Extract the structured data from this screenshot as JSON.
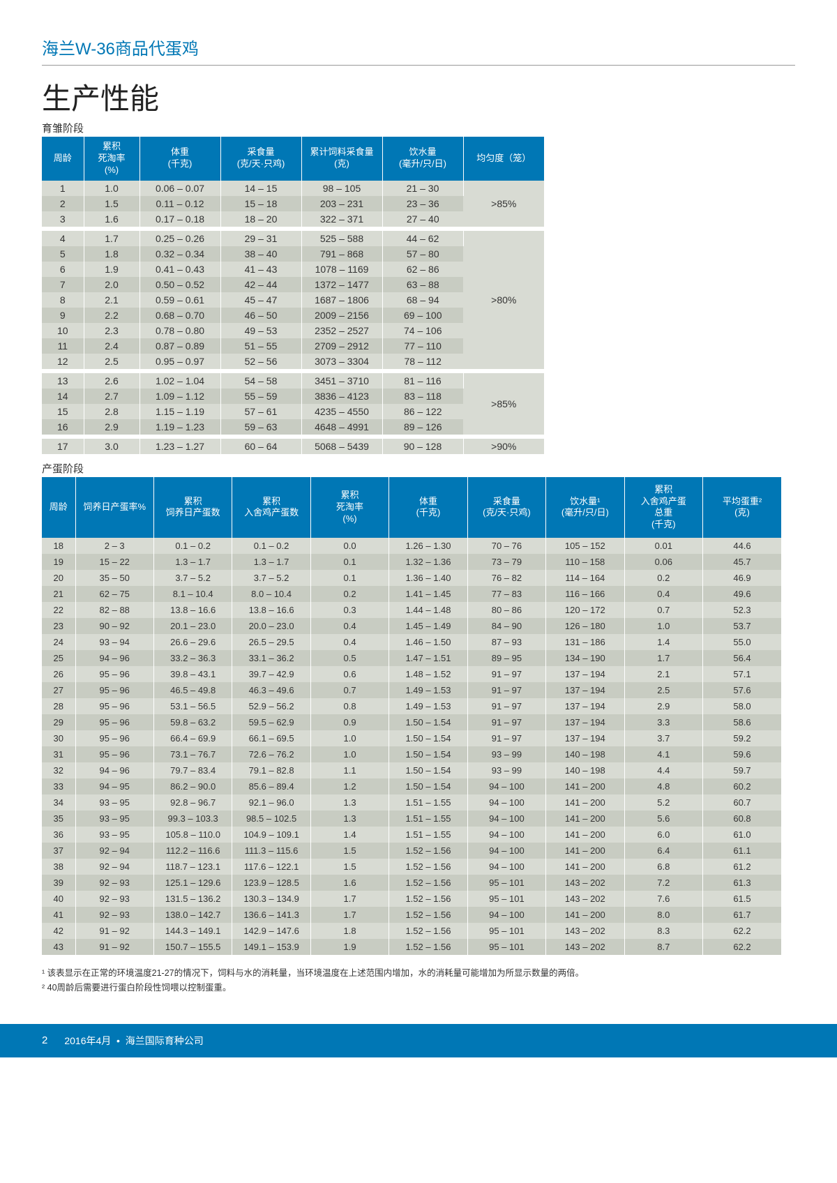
{
  "header": "海兰W-36商品代蛋鸡",
  "title": "生产性能",
  "section1_label": "育雏阶段",
  "section2_label": "产蛋阶段",
  "colors": {
    "brand": "#0077b5",
    "row_a": "#d8dbd3",
    "row_b": "#c8ccc2"
  },
  "t1_headers": [
    "周龄",
    "累积\n死淘率\n(%)",
    "体重\n(千克)",
    "采食量\n(克/天·只鸡)",
    "累计饲料采食量\n(克)",
    "饮水量\n(毫升/只/日)",
    "均匀度（笼）"
  ],
  "t1_groups": [
    {
      "uniformity": ">85%",
      "rows": [
        [
          "1",
          "1.0",
          "0.06 – 0.07",
          "14 – 15",
          "98 – 105",
          "21 – 30"
        ],
        [
          "2",
          "1.5",
          "0.11 – 0.12",
          "15 – 18",
          "203 – 231",
          "23 – 36"
        ],
        [
          "3",
          "1.6",
          "0.17 – 0.18",
          "18 – 20",
          "322 – 371",
          "27 – 40"
        ]
      ]
    },
    {
      "uniformity": ">80%",
      "rows": [
        [
          "4",
          "1.7",
          "0.25 – 0.26",
          "29 – 31",
          "525 – 588",
          "44 – 62"
        ],
        [
          "5",
          "1.8",
          "0.32 – 0.34",
          "38 – 40",
          "791 – 868",
          "57 – 80"
        ],
        [
          "6",
          "1.9",
          "0.41 – 0.43",
          "41 – 43",
          "1078 – 1169",
          "62 – 86"
        ],
        [
          "7",
          "2.0",
          "0.50 – 0.52",
          "42 – 44",
          "1372 – 1477",
          "63 – 88"
        ],
        [
          "8",
          "2.1",
          "0.59 – 0.61",
          "45 – 47",
          "1687 – 1806",
          "68 – 94"
        ],
        [
          "9",
          "2.2",
          "0.68 – 0.70",
          "46 – 50",
          "2009 – 2156",
          "69 – 100"
        ],
        [
          "10",
          "2.3",
          "0.78 – 0.80",
          "49 – 53",
          "2352 – 2527",
          "74 – 106"
        ],
        [
          "11",
          "2.4",
          "0.87 – 0.89",
          "51 – 55",
          "2709 – 2912",
          "77 – 110"
        ],
        [
          "12",
          "2.5",
          "0.95 – 0.97",
          "52 – 56",
          "3073 – 3304",
          "78 – 112"
        ]
      ]
    },
    {
      "uniformity": ">85%",
      "rows": [
        [
          "13",
          "2.6",
          "1.02 – 1.04",
          "54 – 58",
          "3451 – 3710",
          "81 – 116"
        ],
        [
          "14",
          "2.7",
          "1.09 – 1.12",
          "55 – 59",
          "3836 – 4123",
          "83 – 118"
        ],
        [
          "15",
          "2.8",
          "1.15 – 1.19",
          "57 – 61",
          "4235 – 4550",
          "86 – 122"
        ],
        [
          "16",
          "2.9",
          "1.19 – 1.23",
          "59 – 63",
          "4648 – 4991",
          "89 – 126"
        ]
      ]
    },
    {
      "uniformity": ">90%",
      "rows": [
        [
          "17",
          "3.0",
          "1.23 – 1.27",
          "60 – 64",
          "5068 – 5439",
          "90 – 128"
        ]
      ]
    }
  ],
  "t2_headers": [
    "周龄",
    "饲养日产蛋率%",
    "累积\n饲养日产蛋数",
    "累积\n入舍鸡产蛋数",
    "累积\n死淘率\n(%)",
    "体重\n(千克)",
    "采食量\n(克/天·只鸡)",
    "饮水量¹\n(毫升/只/日)",
    "累积\n入舍鸡产蛋\n总重\n(千克)",
    "平均蛋重²\n(克)"
  ],
  "t2_rows": [
    [
      "18",
      "2 – 3",
      "0.1 – 0.2",
      "0.1 – 0.2",
      "0.0",
      "1.26 – 1.30",
      "70 – 76",
      "105 – 152",
      "0.01",
      "44.6"
    ],
    [
      "19",
      "15 – 22",
      "1.3 – 1.7",
      "1.3 – 1.7",
      "0.1",
      "1.32 – 1.36",
      "73 – 79",
      "110 – 158",
      "0.06",
      "45.7"
    ],
    [
      "20",
      "35 – 50",
      "3.7 – 5.2",
      "3.7 – 5.2",
      "0.1",
      "1.36 – 1.40",
      "76 – 82",
      "114 – 164",
      "0.2",
      "46.9"
    ],
    [
      "21",
      "62 – 75",
      "8.1 – 10.4",
      "8.0 – 10.4",
      "0.2",
      "1.41 – 1.45",
      "77 – 83",
      "116 – 166",
      "0.4",
      "49.6"
    ],
    [
      "22",
      "82 – 88",
      "13.8 – 16.6",
      "13.8 – 16.6",
      "0.3",
      "1.44 – 1.48",
      "80 – 86",
      "120 – 172",
      "0.7",
      "52.3"
    ],
    [
      "23",
      "90 – 92",
      "20.1 – 23.0",
      "20.0 – 23.0",
      "0.4",
      "1.45 – 1.49",
      "84 – 90",
      "126 – 180",
      "1.0",
      "53.7"
    ],
    [
      "24",
      "93 – 94",
      "26.6 – 29.6",
      "26.5 – 29.5",
      "0.4",
      "1.46 – 1.50",
      "87 – 93",
      "131 – 186",
      "1.4",
      "55.0"
    ],
    [
      "25",
      "94 – 96",
      "33.2 – 36.3",
      "33.1 – 36.2",
      "0.5",
      "1.47 – 1.51",
      "89 – 95",
      "134 – 190",
      "1.7",
      "56.4"
    ],
    [
      "26",
      "95 – 96",
      "39.8 – 43.1",
      "39.7 – 42.9",
      "0.6",
      "1.48 – 1.52",
      "91 – 97",
      "137 – 194",
      "2.1",
      "57.1"
    ],
    [
      "27",
      "95 – 96",
      "46.5 – 49.8",
      "46.3 – 49.6",
      "0.7",
      "1.49 – 1.53",
      "91 – 97",
      "137 – 194",
      "2.5",
      "57.6"
    ],
    [
      "28",
      "95 – 96",
      "53.1 – 56.5",
      "52.9 – 56.2",
      "0.8",
      "1.49 – 1.53",
      "91 – 97",
      "137 – 194",
      "2.9",
      "58.0"
    ],
    [
      "29",
      "95 – 96",
      "59.8 – 63.2",
      "59.5 – 62.9",
      "0.9",
      "1.50 – 1.54",
      "91 – 97",
      "137 – 194",
      "3.3",
      "58.6"
    ],
    [
      "30",
      "95 – 96",
      "66.4 – 69.9",
      "66.1 – 69.5",
      "1.0",
      "1.50 – 1.54",
      "91 – 97",
      "137 – 194",
      "3.7",
      "59.2"
    ],
    [
      "31",
      "95 – 96",
      "73.1 – 76.7",
      "72.6 – 76.2",
      "1.0",
      "1.50 – 1.54",
      "93 – 99",
      "140 – 198",
      "4.1",
      "59.6"
    ],
    [
      "32",
      "94 – 96",
      "79.7 – 83.4",
      "79.1 – 82.8",
      "1.1",
      "1.50 – 1.54",
      "93 – 99",
      "140 – 198",
      "4.4",
      "59.7"
    ],
    [
      "33",
      "94 – 95",
      "86.2 – 90.0",
      "85.6 – 89.4",
      "1.2",
      "1.50 – 1.54",
      "94 – 100",
      "141 – 200",
      "4.8",
      "60.2"
    ],
    [
      "34",
      "93 – 95",
      "92.8 – 96.7",
      "92.1 – 96.0",
      "1.3",
      "1.51 – 1.55",
      "94 – 100",
      "141 – 200",
      "5.2",
      "60.7"
    ],
    [
      "35",
      "93 – 95",
      "99.3 – 103.3",
      "98.5 – 102.5",
      "1.3",
      "1.51 – 1.55",
      "94 – 100",
      "141 – 200",
      "5.6",
      "60.8"
    ],
    [
      "36",
      "93 – 95",
      "105.8 – 110.0",
      "104.9 – 109.1",
      "1.4",
      "1.51 – 1.55",
      "94 – 100",
      "141 – 200",
      "6.0",
      "61.0"
    ],
    [
      "37",
      "92 – 94",
      "112.2 – 116.6",
      "111.3 – 115.6",
      "1.5",
      "1.52 – 1.56",
      "94 – 100",
      "141 – 200",
      "6.4",
      "61.1"
    ],
    [
      "38",
      "92 – 94",
      "118.7 – 123.1",
      "117.6 – 122.1",
      "1.5",
      "1.52 – 1.56",
      "94 – 100",
      "141 – 200",
      "6.8",
      "61.2"
    ],
    [
      "39",
      "92 – 93",
      "125.1 – 129.6",
      "123.9 – 128.5",
      "1.6",
      "1.52 – 1.56",
      "95 – 101",
      "143 – 202",
      "7.2",
      "61.3"
    ],
    [
      "40",
      "92 – 93",
      "131.5 – 136.2",
      "130.3 – 134.9",
      "1.7",
      "1.52 – 1.56",
      "95 – 101",
      "143 – 202",
      "7.6",
      "61.5"
    ],
    [
      "41",
      "92 – 93",
      "138.0 – 142.7",
      "136.6 – 141.3",
      "1.7",
      "1.52 – 1.56",
      "94 – 100",
      "141 – 200",
      "8.0",
      "61.7"
    ],
    [
      "42",
      "91 – 92",
      "144.3 – 149.1",
      "142.9 – 147.6",
      "1.8",
      "1.52 – 1.56",
      "95 – 101",
      "143 – 202",
      "8.3",
      "62.2"
    ],
    [
      "43",
      "91 – 92",
      "150.7 – 155.5",
      "149.1 – 153.9",
      "1.9",
      "1.52 – 1.56",
      "95 – 101",
      "143 – 202",
      "8.7",
      "62.2"
    ]
  ],
  "footnote1": "¹ 该表显示在正常的环境温度21-27的情况下，饲料与水的消耗量，当环境温度在上述范围内增加，水的消耗量可能增加为所显示数量的两倍。",
  "footnote2": "² 40周龄后需要进行蛋白阶段性饲喂以控制蛋重。",
  "footer": {
    "page": "2",
    "date": "2016年4月",
    "company": "海兰国际育种公司"
  }
}
